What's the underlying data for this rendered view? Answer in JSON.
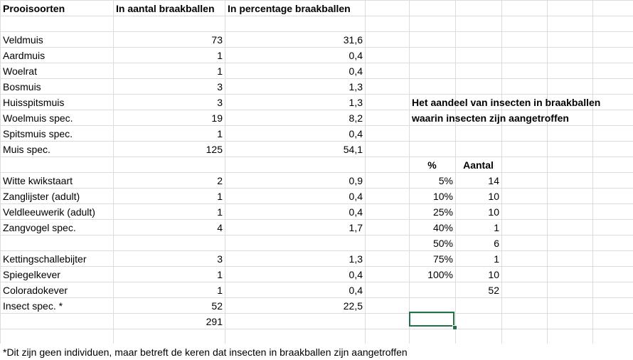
{
  "headers": {
    "prey": "Prooisoorten",
    "count": "In aantal braakballen",
    "percent": "In percentage braakballen"
  },
  "rows": [
    {
      "prey": "Veldmuis",
      "count": "73",
      "percent": "31,6"
    },
    {
      "prey": "Aardmuis",
      "count": "1",
      "percent": "0,4"
    },
    {
      "prey": "Woelrat",
      "count": "1",
      "percent": "0,4"
    },
    {
      "prey": "Bosmuis",
      "count": "3",
      "percent": "1,3"
    },
    {
      "prey": "Huisspitsmuis",
      "count": "3",
      "percent": "1,3"
    },
    {
      "prey": "Woelmuis spec.",
      "count": "19",
      "percent": "8,2"
    },
    {
      "prey": "Spitsmuis spec.",
      "count": "1",
      "percent": "0,4"
    },
    {
      "prey": "Muis spec.",
      "count": "125",
      "percent": "54,1"
    },
    {
      "prey": "Witte kwikstaart",
      "count": "2",
      "percent": "0,9"
    },
    {
      "prey": "Zanglijster (adult)",
      "count": "1",
      "percent": "0,4"
    },
    {
      "prey": "Veldleeuwerik (adult)",
      "count": "1",
      "percent": "0,4"
    },
    {
      "prey": "Zangvogel spec.",
      "count": "4",
      "percent": "1,7"
    },
    {
      "prey": "Kettingschallebijter",
      "count": "3",
      "percent": "1,3"
    },
    {
      "prey": "Spiegelkever",
      "count": "1",
      "percent": "0,4"
    },
    {
      "prey": "Coloradokever",
      "count": "1",
      "percent": "0,4"
    },
    {
      "prey": "Insect spec. *",
      "count": "52",
      "percent": "22,5"
    }
  ],
  "total": "291",
  "insect_table": {
    "title_line1": "Het aandeel van insecten in braakballen",
    "title_line2": "waarin insecten zijn aangetroffen",
    "col_pct": "%",
    "col_count": "Aantal",
    "rows": [
      {
        "pct": "5%",
        "count": "14"
      },
      {
        "pct": "10%",
        "count": "10"
      },
      {
        "pct": "25%",
        "count": "10"
      },
      {
        "pct": "40%",
        "count": "1"
      },
      {
        "pct": "50%",
        "count": "6"
      },
      {
        "pct": "75%",
        "count": "1"
      },
      {
        "pct": "100%",
        "count": "10"
      }
    ],
    "total": "52"
  },
  "footnote": "*Dit zijn geen individuen, maar betreft de keren dat insecten in braakballen zijn aangetroffen"
}
